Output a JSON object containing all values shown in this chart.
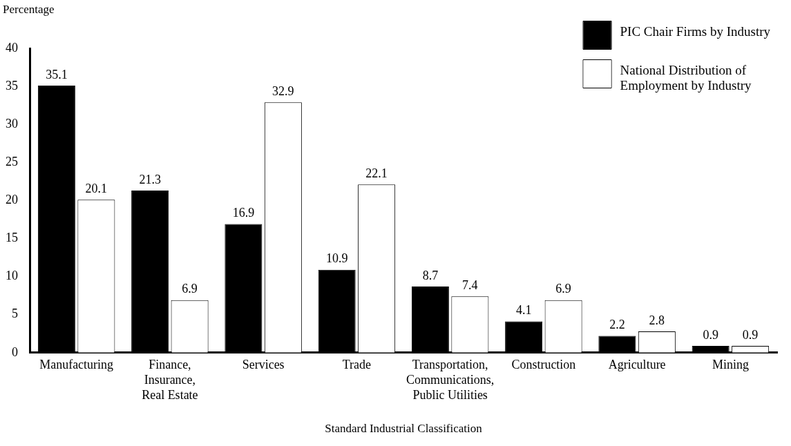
{
  "chart_data": {
    "type": "bar",
    "ylabel": "Percentage",
    "xlabel": "Standard Industrial Classification",
    "categories": [
      "Manufacturing",
      "Finance, Insurance, Real Estate",
      "Services",
      "Trade",
      "Transportation, Communications, Public Utilities",
      "Construction",
      "Agriculture",
      "Mining"
    ],
    "series": [
      {
        "name": "PIC Chair Firms by Industry",
        "color": "#000000",
        "values": [
          35.1,
          21.3,
          16.9,
          10.9,
          8.7,
          4.1,
          2.2,
          0.9
        ]
      },
      {
        "name": "National Distribution of Employment by Industry",
        "color": "#ffffff",
        "values": [
          20.1,
          6.9,
          32.9,
          22.1,
          7.4,
          6.9,
          2.8,
          0.9
        ]
      }
    ],
    "ylim": [
      0,
      40
    ],
    "yticks": [
      0,
      5,
      10,
      15,
      20,
      25,
      30,
      35,
      40
    ],
    "grid": false,
    "legend": "top right",
    "data_labels": true
  }
}
